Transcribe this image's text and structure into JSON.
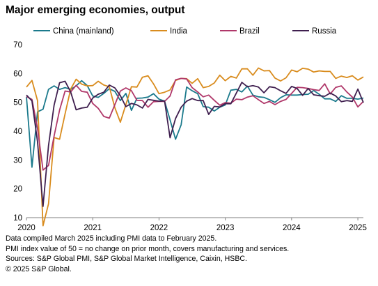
{
  "title": "Major emerging economies, output",
  "footnotes": [
    "Data compiled March 2025 including PMI data to February  2025.",
    "PMI index value of 50 = no change on prior month, covers manufacturing and services.",
    "Sources: S&P Global PMI, S&P Global Market Intelligence, Caixin, HSBC.",
    "© 2025 S&P Global."
  ],
  "chart_data": {
    "type": "line",
    "title": "Major emerging economies, output",
    "xlabel": "",
    "ylabel": "",
    "ylim": [
      10,
      70
    ],
    "yticks": [
      10,
      20,
      30,
      40,
      50,
      60,
      70
    ],
    "xticks": [
      "2020",
      "2021",
      "2022",
      "2023",
      "2024",
      "2025"
    ],
    "grid": false,
    "legend_position": "top",
    "start_month": "2020-01",
    "series": [
      {
        "name": "China (mainland)",
        "color": "#1b7a8c",
        "values": [
          51.9,
          27.5,
          46.7,
          47.6,
          54.5,
          55.7,
          54.5,
          55.1,
          54.5,
          55.7,
          57.5,
          55.8,
          52.2,
          51.7,
          53.1,
          54.7,
          53.8,
          50.6,
          53.1,
          47.2,
          51.4,
          51.5,
          51.8,
          53.0,
          51.1,
          50.4,
          43.9,
          37.2,
          42.2,
          55.3,
          54.0,
          53.0,
          48.5,
          48.3,
          47.0,
          48.3,
          49.1,
          54.2,
          54.5,
          53.6,
          55.6,
          52.5,
          51.9,
          51.7,
          50.9,
          50.0,
          51.6,
          52.6,
          52.5,
          52.5,
          52.7,
          52.8,
          54.1,
          52.8,
          51.2,
          51.2,
          50.3,
          52.3,
          51.4,
          51.4,
          51.1,
          51.5
        ]
      },
      {
        "name": "India",
        "color": "#d98c1e",
        "values": [
          55.3,
          57.6,
          50.6,
          7.2,
          14.8,
          37.8,
          37.2,
          46.0,
          54.6,
          58.0,
          56.3,
          55.7,
          55.8,
          57.3,
          56.0,
          55.4,
          48.1,
          43.1,
          49.2,
          55.4,
          55.3,
          58.7,
          59.2,
          56.4,
          53.0,
          53.5,
          54.3,
          57.6,
          58.3,
          58.2,
          56.6,
          58.2,
          55.1,
          55.5,
          56.7,
          59.4,
          57.5,
          59.0,
          58.4,
          61.6,
          61.6,
          59.4,
          61.9,
          60.9,
          61.0,
          58.4,
          57.4,
          58.5,
          61.2,
          60.6,
          61.8,
          61.5,
          60.5,
          60.9,
          60.7,
          60.7,
          58.3,
          59.1,
          58.6,
          59.2,
          57.7,
          58.8
        ]
      },
      {
        "name": "Brazil",
        "color": "#b0386a",
        "values": [
          52.0,
          51.0,
          41.0,
          26.5,
          28.1,
          38.3,
          47.3,
          53.9,
          53.6,
          55.9,
          53.8,
          53.5,
          49.6,
          47.9,
          45.1,
          44.5,
          49.2,
          53.9,
          55.0,
          54.0,
          50.7,
          50.6,
          48.3,
          50.2,
          50.3,
          50.3,
          52.2,
          57.8,
          58.3,
          58.1,
          55.1,
          53.6,
          51.9,
          52.5,
          50.7,
          49.0,
          49.9,
          49.7,
          51.1,
          50.9,
          51.8,
          52.3,
          50.9,
          49.6,
          50.3,
          49.2,
          50.3,
          51.0,
          53.1,
          55.2,
          55.1,
          54.8,
          54.4,
          54.1,
          56.4,
          52.9,
          55.2,
          55.7,
          53.6,
          51.8,
          48.4,
          50.3
        ]
      },
      {
        "name": "Russia",
        "color": "#3f1f4f",
        "values": [
          52.5,
          50.5,
          36.3,
          13.9,
          35.0,
          49.0,
          56.8,
          57.3,
          53.6,
          47.4,
          48.0,
          48.3,
          51.5,
          52.8,
          53.5,
          56.0,
          55.0,
          52.3,
          48.5,
          49.6,
          49.1,
          48.0,
          51.0,
          50.7,
          50.4,
          50.5,
          37.7,
          44.4,
          48.3,
          50.4,
          51.3,
          50.6,
          50.6,
          45.8,
          48.6,
          48.4,
          49.5,
          49.5,
          53.2,
          56.9,
          55.4,
          55.8,
          55.3,
          53.3,
          55.4,
          55.1,
          54.0,
          53.1,
          55.5,
          54.8,
          52.4,
          54.8,
          52.6,
          52.3,
          52.1,
          53.2,
          52.2,
          50.2,
          50.6,
          50.3,
          54.6,
          49.9
        ]
      }
    ]
  }
}
